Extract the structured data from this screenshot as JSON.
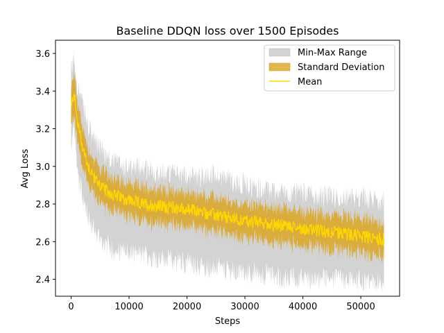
{
  "chart_data": {
    "type": "area",
    "title": "Baseline DDQN loss over 1500 Episodes",
    "xlabel": "Steps",
    "ylabel": "Avg Loss",
    "xlim": [
      -2700,
      56700
    ],
    "ylim": [
      2.31,
      3.67
    ],
    "xticks": [
      0,
      10000,
      20000,
      30000,
      40000,
      50000
    ],
    "xtick_labels": [
      "0",
      "10000",
      "20000",
      "30000",
      "40000",
      "50000"
    ],
    "yticks": [
      2.4,
      2.6,
      2.8,
      3.0,
      3.2,
      3.4,
      3.6
    ],
    "ytick_labels": [
      "2.4",
      "2.6",
      "2.8",
      "3.0",
      "3.2",
      "3.4",
      "3.6"
    ],
    "grid": false,
    "legend_position": "top-right",
    "x": [
      0,
      500,
      1000,
      2000,
      3000,
      4000,
      5000,
      6000,
      8000,
      10000,
      12000,
      15000,
      18000,
      20000,
      22000,
      25000,
      28000,
      30000,
      33000,
      35000,
      38000,
      40000,
      42000,
      45000,
      48000,
      50000,
      52000,
      54000
    ],
    "series": [
      {
        "name": "Mean",
        "color": "#FFD700",
        "values": [
          3.3,
          3.4,
          3.25,
          3.1,
          3.0,
          2.94,
          2.9,
          2.87,
          2.84,
          2.82,
          2.8,
          2.79,
          2.78,
          2.77,
          2.76,
          2.74,
          2.72,
          2.71,
          2.7,
          2.69,
          2.68,
          2.67,
          2.66,
          2.65,
          2.64,
          2.63,
          2.62,
          2.61
        ]
      },
      {
        "name": "Standard Deviation",
        "color": "#DAA520",
        "std": [
          0.09,
          0.12,
          0.1,
          0.1,
          0.09,
          0.09,
          0.09,
          0.09,
          0.09,
          0.09,
          0.09,
          0.09,
          0.09,
          0.09,
          0.09,
          0.09,
          0.09,
          0.09,
          0.09,
          0.09,
          0.09,
          0.09,
          0.09,
          0.09,
          0.09,
          0.09,
          0.09,
          0.09
        ]
      },
      {
        "name": "Min-Max Range",
        "color": "#D3D3D3",
        "min": [
          3.1,
          3.2,
          3.0,
          2.84,
          2.72,
          2.66,
          2.62,
          2.58,
          2.55,
          2.54,
          2.53,
          2.51,
          2.5,
          2.49,
          2.47,
          2.46,
          2.44,
          2.43,
          2.43,
          2.42,
          2.41,
          2.41,
          2.4,
          2.4,
          2.39,
          2.39,
          2.38,
          2.38
        ],
        "max": [
          3.5,
          3.58,
          3.45,
          3.32,
          3.2,
          3.14,
          3.1,
          3.06,
          3.02,
          2.98,
          3.0,
          2.97,
          2.96,
          2.95,
          2.95,
          2.96,
          2.92,
          2.9,
          2.88,
          2.87,
          2.86,
          2.86,
          2.85,
          2.84,
          2.83,
          2.84,
          2.82,
          2.82
        ]
      }
    ]
  }
}
